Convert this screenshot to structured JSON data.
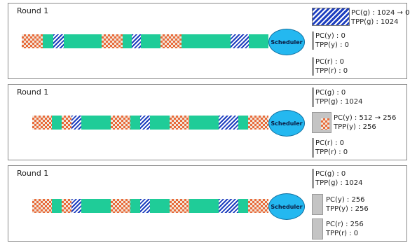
{
  "panels": [
    {
      "title": "Round 1",
      "scheduler_label": "Scheduler",
      "queues": [
        {
          "line1": "PC(g) : 1024 → 0",
          "line2": "TPP(g) : 1024"
        },
        {
          "line1": "PC(y) : 0",
          "line2": "TPP(y) : 0"
        },
        {
          "line1": "PC(r) : 0",
          "line2": "TPP(r) : 0"
        }
      ]
    },
    {
      "title": "Round 1",
      "scheduler_label": "Scheduler",
      "queues": [
        {
          "line1": "PC(g) : 0",
          "line2": "TPP(g) : 1024"
        },
        {
          "line1": "PC(y) : 512 → 256",
          "line2": "TPP(y) : 256"
        },
        {
          "line1": "PC(r) : 0",
          "line2": "TPP(r) : 0"
        }
      ]
    },
    {
      "title": "Round 1",
      "scheduler_label": "Scheduler",
      "queues": [
        {
          "line1": "PC(g) : 0",
          "line2": "TPP(g) : 1024"
        },
        {
          "line1": "PC(y) : 256",
          "line2": "TPP(y) : 256"
        },
        {
          "line1": "PC(r) : 256",
          "line2": "TPP(r) : 0"
        }
      ]
    }
  ],
  "colors": {
    "green_packet": "#1fcc98",
    "blue_packet": "#1e3fbf",
    "orange_packet": "#e86a3a",
    "scheduler": "#24b8f0",
    "queue_bar": "#9a9a9a"
  }
}
